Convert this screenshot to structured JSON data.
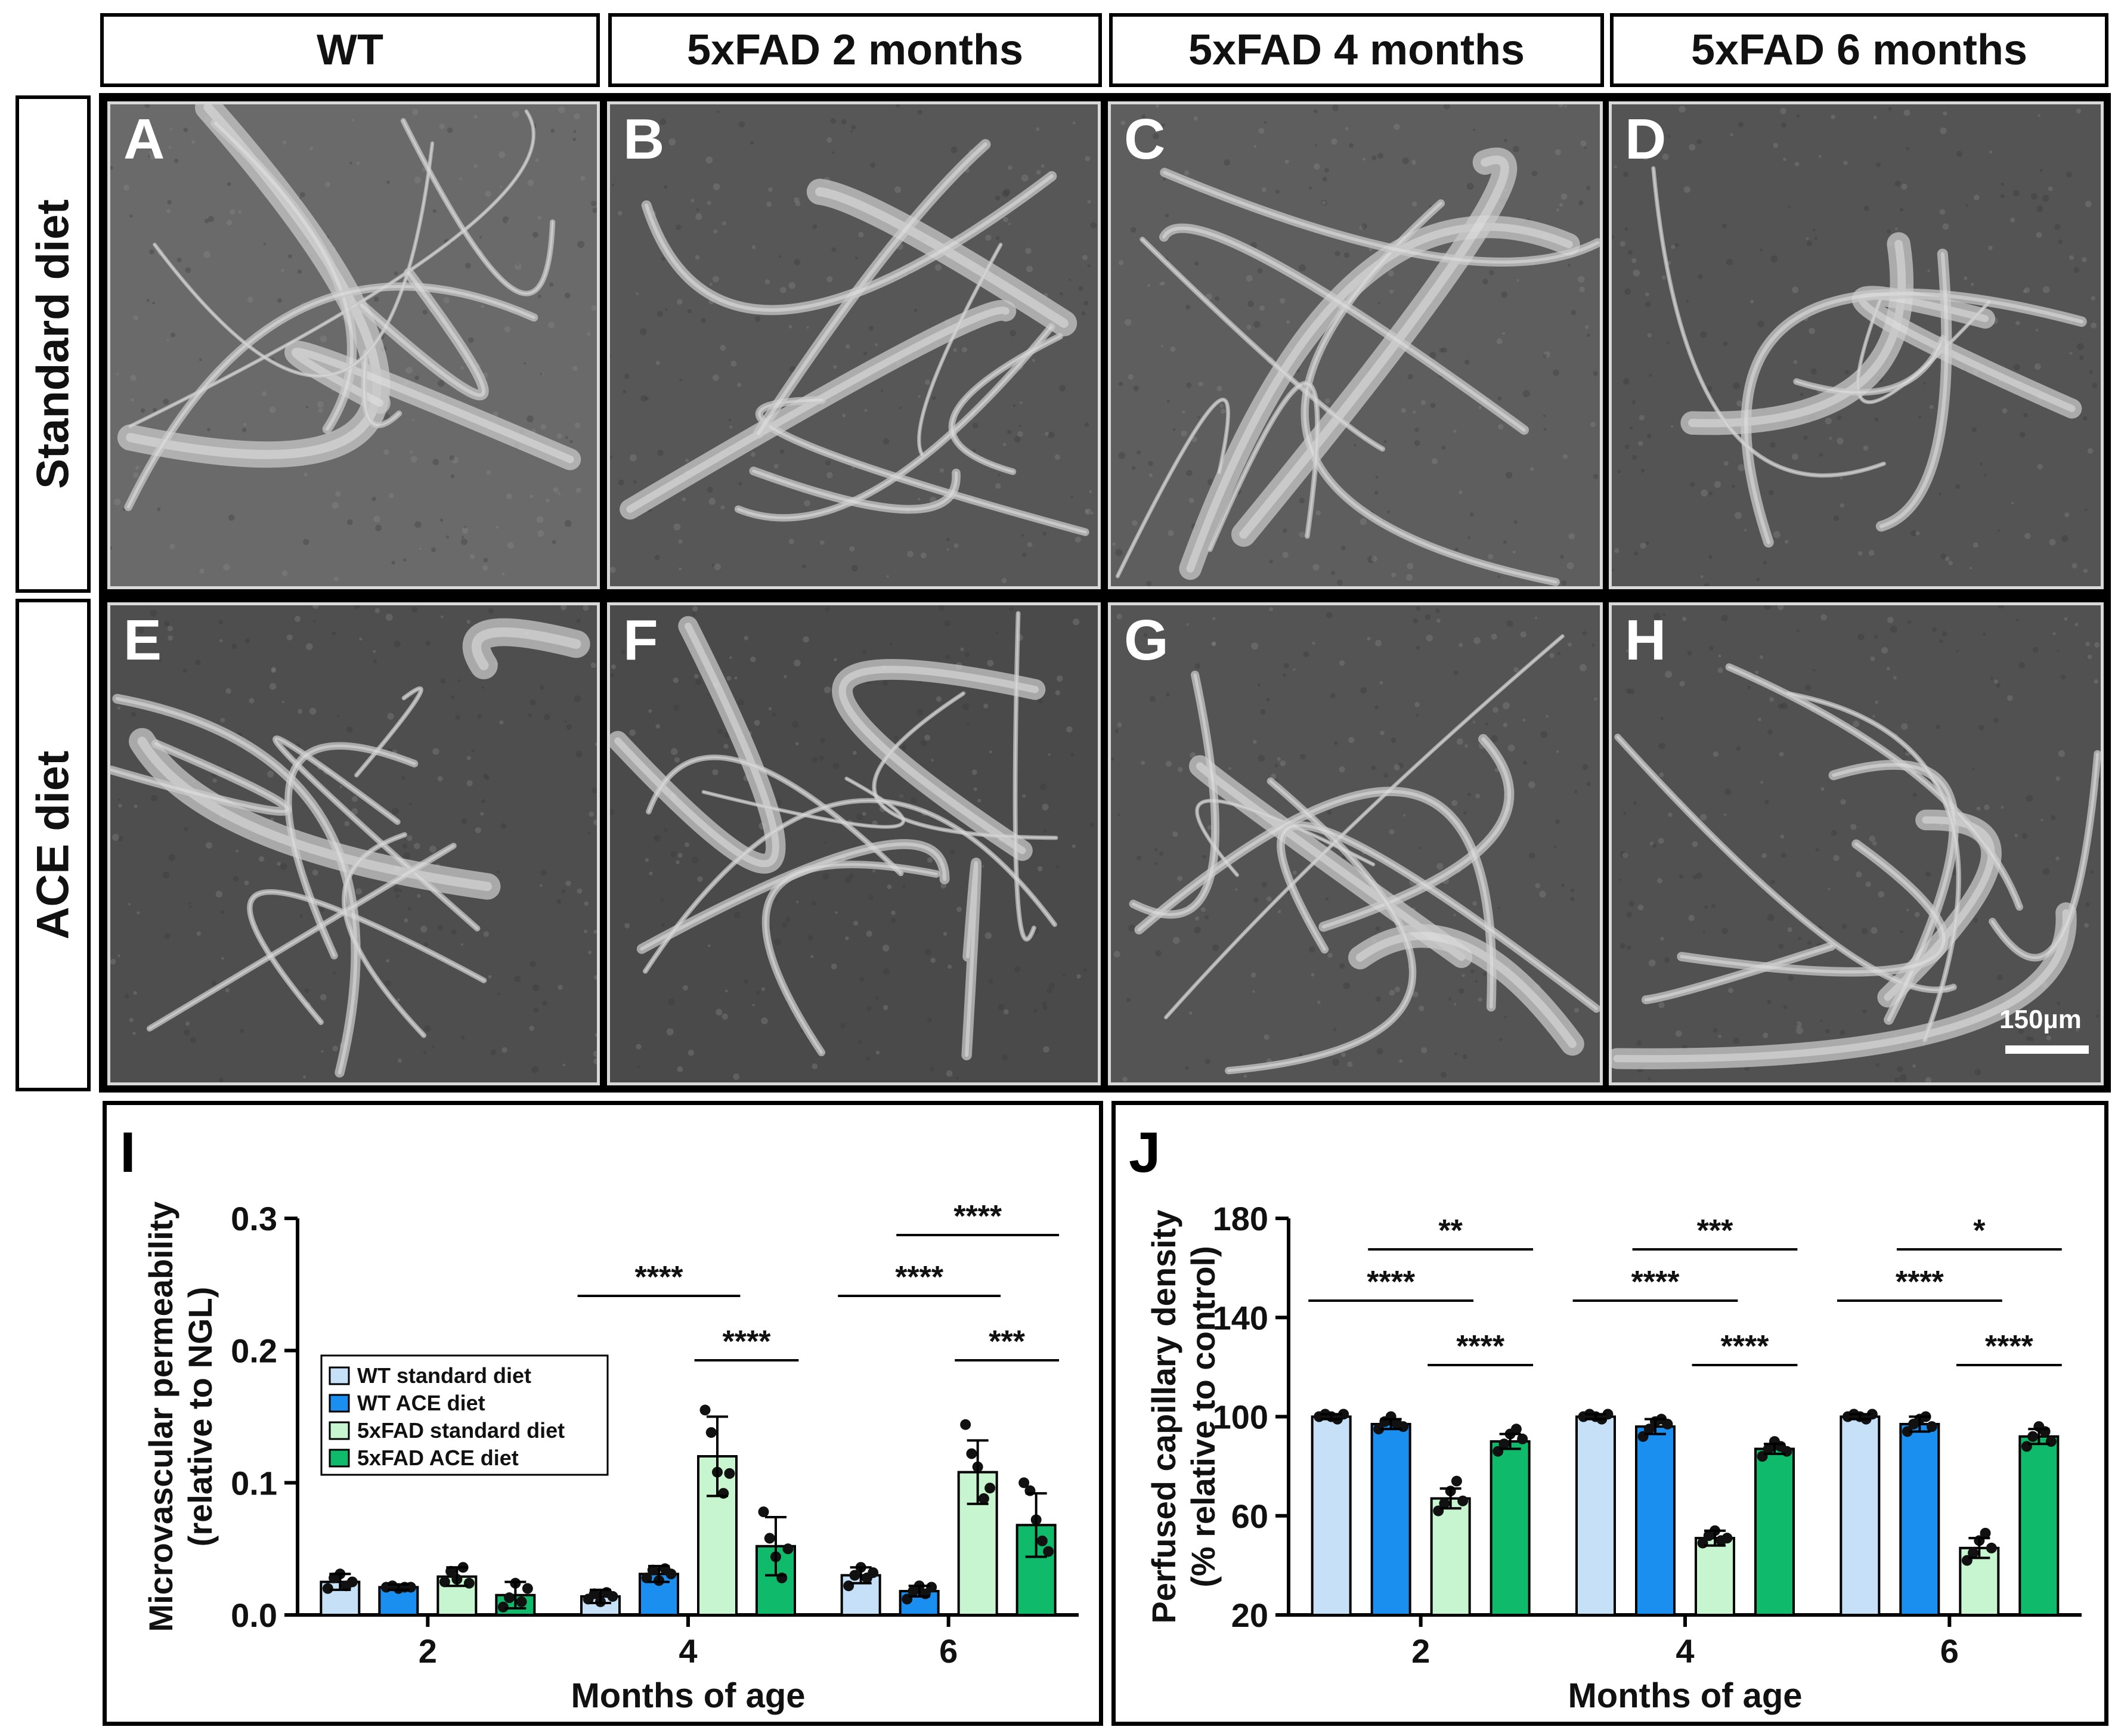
{
  "columns": [
    "WT",
    "5xFAD 2 months",
    "5xFAD 4 months",
    "5xFAD 6 months"
  ],
  "rows": [
    "Standard diet",
    "ACE diet"
  ],
  "panels": [
    "A",
    "B",
    "C",
    "D",
    "E",
    "F",
    "G",
    "H"
  ],
  "scale_bar": "150µm",
  "colors": {
    "wt_standard": "#c5e0f7",
    "wt_ace": "#1a8fef",
    "fad_standard": "#c6f5cf",
    "fad_ace": "#0fba6a"
  },
  "chart_data": [
    {
      "panel": "I",
      "type": "bar",
      "ylabel_line1": "Microvascular permeability",
      "ylabel_line2": "(relative to NGL)",
      "xlabel": "Months of age",
      "categories": [
        "2",
        "4",
        "6"
      ],
      "ylim": [
        0,
        0.3
      ],
      "yticks": [
        "0.0",
        "0.1",
        "0.2",
        "0.3"
      ],
      "legend": [
        "WT standard diet",
        "WT ACE diet",
        "5xFAD standard diet",
        "5xFAD ACE diet"
      ],
      "series": [
        {
          "name": "WT standard diet",
          "values": [
            0.025,
            0.014,
            0.03
          ],
          "err": [
            0.006,
            0.005,
            0.006
          ]
        },
        {
          "name": "WT ACE diet",
          "values": [
            0.021,
            0.031,
            0.018
          ],
          "err": [
            0.002,
            0.006,
            0.004
          ]
        },
        {
          "name": "5xFAD standard diet",
          "values": [
            0.029,
            0.12,
            0.108
          ],
          "err": [
            0.007,
            0.03,
            0.024
          ]
        },
        {
          "name": "5xFAD ACE diet",
          "values": [
            0.015,
            0.052,
            0.068
          ],
          "err": [
            0.01,
            0.022,
            0.024
          ]
        }
      ],
      "points": [
        [
          [
            0.02,
            0.028,
            0.031,
            0.022,
            0.025
          ],
          [
            0.021,
            0.022,
            0.02,
            0.021,
            0.021
          ],
          [
            0.025,
            0.033,
            0.027,
            0.036,
            0.024
          ],
          [
            0.006,
            0.013,
            0.024,
            0.01,
            0.02
          ]
        ],
        [
          [
            0.012,
            0.016,
            0.01,
            0.017,
            0.014
          ],
          [
            0.028,
            0.034,
            0.026,
            0.035,
            0.031
          ],
          [
            0.155,
            0.138,
            0.108,
            0.092,
            0.107
          ],
          [
            0.078,
            0.058,
            0.044,
            0.028,
            0.05
          ]
        ],
        [
          [
            0.022,
            0.03,
            0.036,
            0.028,
            0.032
          ],
          [
            0.012,
            0.018,
            0.022,
            0.016,
            0.021
          ],
          [
            0.144,
            0.122,
            0.112,
            0.088,
            0.096
          ],
          [
            0.1,
            0.094,
            0.072,
            0.056,
            0.048
          ]
        ]
      ],
      "significance": [
        {
          "group": 1,
          "from": 0,
          "to": 2,
          "level": 0,
          "label": "****"
        },
        {
          "group": 1,
          "from": 2,
          "to": 3,
          "level": 1,
          "label": "****"
        },
        {
          "group": 2,
          "from": 0,
          "to": 2,
          "level": 0,
          "label": "****"
        },
        {
          "group": 2,
          "from": 1,
          "to": 3,
          "level": 2,
          "label": "****"
        },
        {
          "group": 2,
          "from": 2,
          "to": 3,
          "level": 1,
          "label": "***"
        }
      ]
    },
    {
      "panel": "J",
      "type": "bar",
      "ylabel_line1": "Perfused capillary density",
      "ylabel_line2": "(% relative to control)",
      "xlabel": "Months of age",
      "categories": [
        "2",
        "4",
        "6"
      ],
      "ylim": [
        20,
        180
      ],
      "yticks": [
        "20",
        "60",
        "100",
        "140",
        "180"
      ],
      "series": [
        {
          "name": "WT standard diet",
          "values": [
            100,
            100,
            100
          ],
          "err": [
            1,
            1,
            1
          ]
        },
        {
          "name": "WT ACE diet",
          "values": [
            97,
            96,
            97
          ],
          "err": [
            2,
            3,
            3
          ]
        },
        {
          "name": "5xFAD standard diet",
          "values": [
            67,
            51,
            47
          ],
          "err": [
            4,
            3,
            4
          ]
        },
        {
          "name": "5xFAD ACE diet",
          "values": [
            90,
            87,
            92
          ],
          "err": [
            3,
            2,
            3
          ]
        }
      ],
      "points": [
        [
          [
            100,
            101,
            100,
            99,
            101
          ],
          [
            95,
            98,
            100,
            97,
            96
          ],
          [
            62,
            65,
            70,
            74,
            66
          ],
          [
            86,
            89,
            93,
            95,
            91
          ]
        ],
        [
          [
            100,
            101,
            100,
            99,
            101
          ],
          [
            92,
            95,
            98,
            99,
            97
          ],
          [
            49,
            52,
            54,
            50,
            51
          ],
          [
            84,
            87,
            90,
            88,
            86
          ]
        ],
        [
          [
            100,
            101,
            100,
            99,
            101
          ],
          [
            94,
            97,
            99,
            100,
            96
          ],
          [
            42,
            45,
            50,
            53,
            47
          ],
          [
            88,
            92,
            96,
            94,
            90
          ]
        ]
      ],
      "significance": [
        {
          "group": 0,
          "from": 0,
          "to": 2,
          "level": 0,
          "label": "****"
        },
        {
          "group": 0,
          "from": 1,
          "to": 3,
          "level": 2,
          "label": "**"
        },
        {
          "group": 0,
          "from": 2,
          "to": 3,
          "level": 1,
          "label": "****"
        },
        {
          "group": 1,
          "from": 0,
          "to": 2,
          "level": 0,
          "label": "****"
        },
        {
          "group": 1,
          "from": 1,
          "to": 3,
          "level": 2,
          "label": "***"
        },
        {
          "group": 1,
          "from": 2,
          "to": 3,
          "level": 1,
          "label": "****"
        },
        {
          "group": 2,
          "from": 0,
          "to": 2,
          "level": 0,
          "label": "****"
        },
        {
          "group": 2,
          "from": 1,
          "to": 3,
          "level": 2,
          "label": "*"
        },
        {
          "group": 2,
          "from": 2,
          "to": 3,
          "level": 1,
          "label": "****"
        }
      ]
    }
  ]
}
